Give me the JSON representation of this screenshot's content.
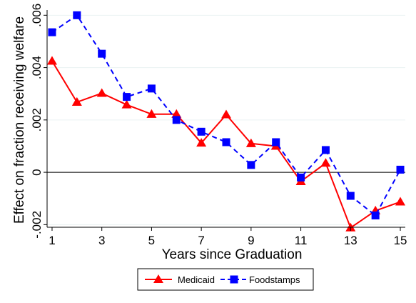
{
  "chart_data": {
    "type": "line",
    "title": "",
    "xlabel": "Years since Graduation",
    "ylabel": "Effect on fraction receiving welfare",
    "x": [
      1,
      2,
      3,
      4,
      5,
      6,
      7,
      8,
      9,
      10,
      11,
      12,
      13,
      14,
      15
    ],
    "xticks": [
      1,
      3,
      5,
      7,
      9,
      11,
      13,
      15
    ],
    "xlim": [
      0.8,
      15.2
    ],
    "yticks": [
      -0.002,
      0,
      0.002,
      0.004,
      0.006
    ],
    "ytick_labels": [
      "-.002",
      "0",
      ".002",
      ".004",
      ".006"
    ],
    "ylim": [
      -0.0021,
      0.0062
    ],
    "grid": true,
    "zero_line": true,
    "legend_position": "bottom",
    "series": [
      {
        "name": "Medicaid",
        "color": "#ff0000",
        "line_style": "solid",
        "marker": "triangle",
        "values": [
          0.00425,
          0.00268,
          0.00302,
          0.00258,
          0.00222,
          0.00222,
          0.00112,
          0.0022,
          0.0011,
          0.001,
          -0.00035,
          0.00035,
          -0.00212,
          -0.00147,
          -0.00113
        ]
      },
      {
        "name": "Foodstamps",
        "color": "#0000ff",
        "line_style": "dashed",
        "marker": "square",
        "values": [
          0.00535,
          0.006,
          0.00453,
          0.00288,
          0.0032,
          0.002,
          0.00155,
          0.00115,
          0.00028,
          0.00115,
          -0.0002,
          0.00085,
          -0.0009,
          -0.00165,
          0.0001
        ]
      }
    ]
  }
}
